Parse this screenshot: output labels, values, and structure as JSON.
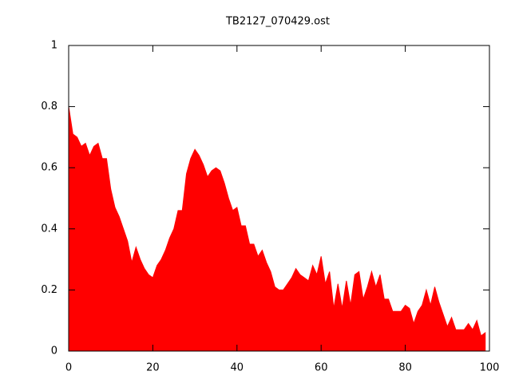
{
  "chart_data": {
    "type": "area",
    "title": "TB2127_070429.ost",
    "color": "#ff0000",
    "x": [
      0,
      1,
      2,
      3,
      4,
      5,
      6,
      7,
      8,
      9,
      10,
      11,
      12,
      13,
      14,
      15,
      16,
      17,
      18,
      19,
      20,
      21,
      22,
      23,
      24,
      25,
      26,
      27,
      28,
      29,
      30,
      31,
      32,
      33,
      34,
      35,
      36,
      37,
      38,
      39,
      40,
      41,
      42,
      43,
      44,
      45,
      46,
      47,
      48,
      49,
      50,
      51,
      52,
      53,
      54,
      55,
      56,
      57,
      58,
      59,
      60,
      61,
      62,
      63,
      64,
      65,
      66,
      67,
      68,
      69,
      70,
      71,
      72,
      73,
      74,
      75,
      76,
      77,
      78,
      79,
      80,
      81,
      82,
      83,
      84,
      85,
      86,
      87,
      88,
      89,
      90,
      91,
      92,
      93,
      94,
      95,
      96,
      97,
      98,
      99
    ],
    "values": [
      0.8,
      0.71,
      0.7,
      0.67,
      0.68,
      0.64,
      0.67,
      0.68,
      0.63,
      0.63,
      0.53,
      0.47,
      0.44,
      0.4,
      0.36,
      0.29,
      0.34,
      0.3,
      0.27,
      0.25,
      0.24,
      0.28,
      0.3,
      0.33,
      0.37,
      0.4,
      0.46,
      0.46,
      0.58,
      0.63,
      0.66,
      0.64,
      0.61,
      0.57,
      0.59,
      0.6,
      0.59,
      0.55,
      0.5,
      0.46,
      0.47,
      0.41,
      0.41,
      0.35,
      0.35,
      0.31,
      0.33,
      0.29,
      0.26,
      0.21,
      0.2,
      0.2,
      0.22,
      0.24,
      0.27,
      0.25,
      0.24,
      0.23,
      0.28,
      0.25,
      0.31,
      0.22,
      0.26,
      0.14,
      0.22,
      0.14,
      0.23,
      0.15,
      0.25,
      0.26,
      0.17,
      0.21,
      0.26,
      0.21,
      0.25,
      0.17,
      0.17,
      0.13,
      0.13,
      0.13,
      0.15,
      0.14,
      0.09,
      0.13,
      0.15,
      0.2,
      0.15,
      0.21,
      0.16,
      0.12,
      0.08,
      0.11,
      0.07,
      0.07,
      0.07,
      0.09,
      0.07,
      0.1,
      0.05,
      0.06
    ],
    "xlim": [
      0,
      100
    ],
    "xticks": [
      0,
      20,
      40,
      60,
      80,
      100
    ],
    "ylim": [
      0,
      1
    ],
    "yticks": [
      0,
      0.2,
      0.4,
      0.6,
      0.8,
      1
    ]
  }
}
